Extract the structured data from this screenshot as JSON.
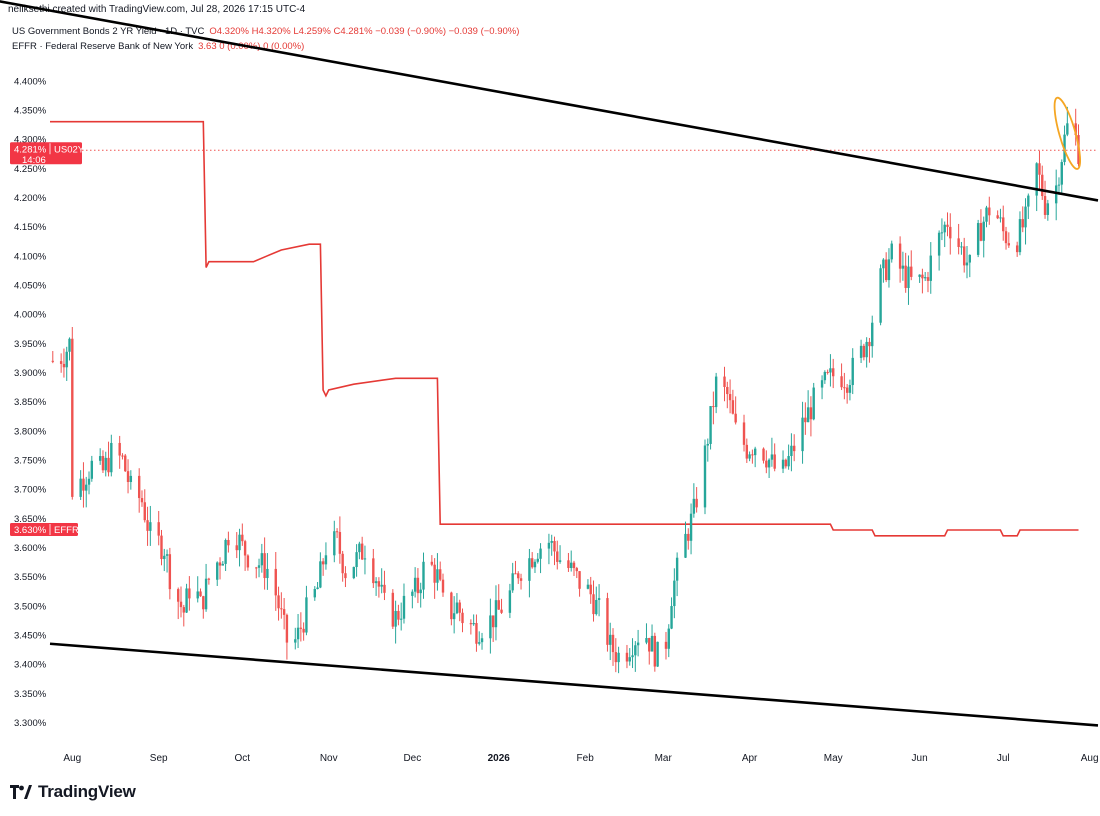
{
  "header": {
    "credit": "neilksethi created with TradingView.com, Jul 28, 2026 17:15 UTC-4",
    "unit_button": "%"
  },
  "legend": [
    {
      "name": "US Government Bonds 2 YR Yield · 1D · TVC",
      "values": "O4.320%  H4.320%  L4.259%  C4.281%  −0.039 (−0.90%)  −0.039 (−0.90%)"
    },
    {
      "name": "EFFR · Federal Reserve Bank of New York",
      "values": "3.63  0 (0.00%)  0 (0.00%)"
    }
  ],
  "price_badges": {
    "us02y": {
      "value": "4.281%",
      "tag": "US02Y",
      "countdown": "14:06"
    },
    "effr": {
      "value": "3.630%",
      "tag": "EFFR"
    }
  },
  "brand": {
    "name": "TradingView"
  },
  "colors": {
    "up": "#26a69a",
    "down": "#ef5350",
    "effr_line": "#e53935",
    "trendline": "#000000",
    "highlight_ellipse": "#f5a623",
    "badge_bg": "#f23645"
  },
  "chart_data": {
    "type": "candlestick",
    "title": "US Government Bonds 2 YR Yield · 1D · TVC",
    "ylim": [
      3.27,
      4.47
    ],
    "y_unit": "%",
    "y_ticks": [
      "3.300%",
      "3.350%",
      "3.400%",
      "3.450%",
      "3.500%",
      "3.550%",
      "3.600%",
      "3.650%",
      "3.700%",
      "3.750%",
      "3.800%",
      "3.850%",
      "3.900%",
      "3.950%",
      "4.000%",
      "4.050%",
      "4.100%",
      "4.150%",
      "4.200%",
      "4.250%",
      "4.300%",
      "4.350%",
      "4.400%"
    ],
    "x_ticks": [
      "Aug",
      "Sep",
      "Oct",
      "Nov",
      "Dec",
      "2026",
      "Feb",
      "Mar",
      "Apr",
      "May",
      "Jun",
      "Jul",
      "Aug"
    ],
    "x_range": [
      "2025-07-24",
      "2026-08-04"
    ],
    "grid": false,
    "series": [
      {
        "name": "US02Y",
        "kind": "daily candles (close path approximated)",
        "closes": [
          [
            "2025-07-25",
            3.92
          ],
          [
            "2025-07-29",
            3.93
          ],
          [
            "2025-07-31",
            3.95
          ],
          [
            "2025-08-01",
            3.7
          ],
          [
            "2025-08-05",
            3.72
          ],
          [
            "2025-08-08",
            3.74
          ],
          [
            "2025-08-12",
            3.73
          ],
          [
            "2025-08-15",
            3.76
          ],
          [
            "2025-08-19",
            3.75
          ],
          [
            "2025-08-22",
            3.7
          ],
          [
            "2025-08-26",
            3.68
          ],
          [
            "2025-08-29",
            3.62
          ],
          [
            "2025-09-03",
            3.6
          ],
          [
            "2025-09-06",
            3.53
          ],
          [
            "2025-09-10",
            3.49
          ],
          [
            "2025-09-13",
            3.55
          ],
          [
            "2025-09-16",
            3.5
          ],
          [
            "2025-09-20",
            3.56
          ],
          [
            "2025-09-24",
            3.59
          ],
          [
            "2025-09-27",
            3.64
          ],
          [
            "2025-10-01",
            3.6
          ],
          [
            "2025-10-04",
            3.58
          ],
          [
            "2025-10-08",
            3.57
          ],
          [
            "2025-10-11",
            3.56
          ],
          [
            "2025-10-15",
            3.48
          ],
          [
            "2025-10-18",
            3.42
          ],
          [
            "2025-10-21",
            3.45
          ],
          [
            "2025-10-24",
            3.49
          ],
          [
            "2025-10-28",
            3.53
          ],
          [
            "2025-10-31",
            3.6
          ],
          [
            "2025-11-04",
            3.61
          ],
          [
            "2025-11-07",
            3.56
          ],
          [
            "2025-11-11",
            3.58
          ],
          [
            "2025-11-14",
            3.6
          ],
          [
            "2025-11-18",
            3.55
          ],
          [
            "2025-11-21",
            3.5
          ],
          [
            "2025-11-25",
            3.48
          ],
          [
            "2025-11-29",
            3.51
          ],
          [
            "2025-12-03",
            3.53
          ],
          [
            "2025-12-06",
            3.58
          ],
          [
            "2025-12-10",
            3.55
          ],
          [
            "2025-12-13",
            3.48
          ],
          [
            "2025-12-17",
            3.5
          ],
          [
            "2025-12-20",
            3.47
          ],
          [
            "2025-12-24",
            3.46
          ],
          [
            "2025-12-28",
            3.47
          ],
          [
            "2026-01-01",
            3.49
          ],
          [
            "2026-01-05",
            3.52
          ],
          [
            "2026-01-08",
            3.56
          ],
          [
            "2026-01-12",
            3.58
          ],
          [
            "2026-01-15",
            3.6
          ],
          [
            "2026-01-19",
            3.61
          ],
          [
            "2026-01-23",
            3.58
          ],
          [
            "2026-01-27",
            3.56
          ],
          [
            "2026-01-30",
            3.54
          ],
          [
            "2026-02-03",
            3.52
          ],
          [
            "2026-02-07",
            3.48
          ],
          [
            "2026-02-10",
            3.43
          ],
          [
            "2026-02-14",
            3.41
          ],
          [
            "2026-02-18",
            3.44
          ],
          [
            "2026-02-22",
            3.46
          ],
          [
            "2026-02-26",
            3.42
          ],
          [
            "2026-03-01",
            3.4
          ],
          [
            "2026-03-04",
            3.52
          ],
          [
            "2026-03-08",
            3.6
          ],
          [
            "2026-03-12",
            3.66
          ],
          [
            "2026-03-16",
            3.76
          ],
          [
            "2026-03-20",
            3.88
          ],
          [
            "2026-03-24",
            3.86
          ],
          [
            "2026-03-27",
            3.8
          ],
          [
            "2026-03-31",
            3.77
          ],
          [
            "2026-04-04",
            3.78
          ],
          [
            "2026-04-08",
            3.75
          ],
          [
            "2026-04-12",
            3.72
          ],
          [
            "2026-04-16",
            3.76
          ],
          [
            "2026-04-20",
            3.81
          ],
          [
            "2026-04-24",
            3.85
          ],
          [
            "2026-04-28",
            3.88
          ],
          [
            "2026-05-02",
            3.9
          ],
          [
            "2026-05-06",
            3.89
          ],
          [
            "2026-05-10",
            3.92
          ],
          [
            "2026-05-14",
            3.97
          ],
          [
            "2026-05-18",
            4.06
          ],
          [
            "2026-05-22",
            4.1
          ],
          [
            "2026-05-26",
            4.07
          ],
          [
            "2026-05-30",
            4.05
          ],
          [
            "2026-06-03",
            4.06
          ],
          [
            "2026-06-07",
            4.12
          ],
          [
            "2026-06-11",
            4.16
          ],
          [
            "2026-06-15",
            4.12
          ],
          [
            "2026-06-19",
            4.08
          ],
          [
            "2026-06-23",
            4.15
          ],
          [
            "2026-06-27",
            4.19
          ],
          [
            "2026-07-01",
            4.14
          ],
          [
            "2026-07-05",
            4.12
          ],
          [
            "2026-07-09",
            4.16
          ],
          [
            "2026-07-13",
            4.25
          ],
          [
            "2026-07-16",
            4.19
          ],
          [
            "2026-07-20",
            4.22
          ],
          [
            "2026-07-23",
            4.3
          ],
          [
            "2026-07-25",
            4.34
          ],
          [
            "2026-07-28",
            4.281
          ]
        ]
      },
      {
        "name": "EFFR",
        "kind": "step line",
        "points": [
          [
            "2025-07-24",
            4.33
          ],
          [
            "2025-09-17",
            4.33
          ],
          [
            "2025-09-18",
            4.08
          ],
          [
            "2025-09-19",
            4.09
          ],
          [
            "2025-10-05",
            4.09
          ],
          [
            "2025-10-10",
            4.1
          ],
          [
            "2025-10-15",
            4.11
          ],
          [
            "2025-10-25",
            4.12
          ],
          [
            "2025-10-29",
            4.12
          ],
          [
            "2025-10-30",
            3.87
          ],
          [
            "2025-10-31",
            3.86
          ],
          [
            "2025-11-01",
            3.87
          ],
          [
            "2025-11-10",
            3.88
          ],
          [
            "2025-11-25",
            3.89
          ],
          [
            "2025-12-10",
            3.89
          ],
          [
            "2025-12-11",
            3.64
          ],
          [
            "2026-04-30",
            3.64
          ],
          [
            "2026-05-01",
            3.63
          ],
          [
            "2026-05-15",
            3.63
          ],
          [
            "2026-05-16",
            3.62
          ],
          [
            "2026-06-10",
            3.62
          ],
          [
            "2026-06-11",
            3.63
          ],
          [
            "2026-06-30",
            3.63
          ],
          [
            "2026-07-01",
            3.62
          ],
          [
            "2026-07-06",
            3.62
          ],
          [
            "2026-07-07",
            3.63
          ],
          [
            "2026-07-28",
            3.63
          ]
        ]
      }
    ],
    "trendlines": [
      {
        "name": "upper-trendline",
        "from": [
          "2025-06-20",
          4.55
        ],
        "to": [
          "2026-08-04",
          4.195
        ]
      },
      {
        "name": "lower-trendline",
        "from": [
          "2025-07-24",
          3.435
        ],
        "to": [
          "2026-08-04",
          3.295
        ]
      }
    ],
    "annotations": [
      {
        "name": "highlight-ellipse",
        "center": [
          "2026-07-24",
          4.31
        ],
        "note": ""
      }
    ],
    "last_price": 4.281
  }
}
